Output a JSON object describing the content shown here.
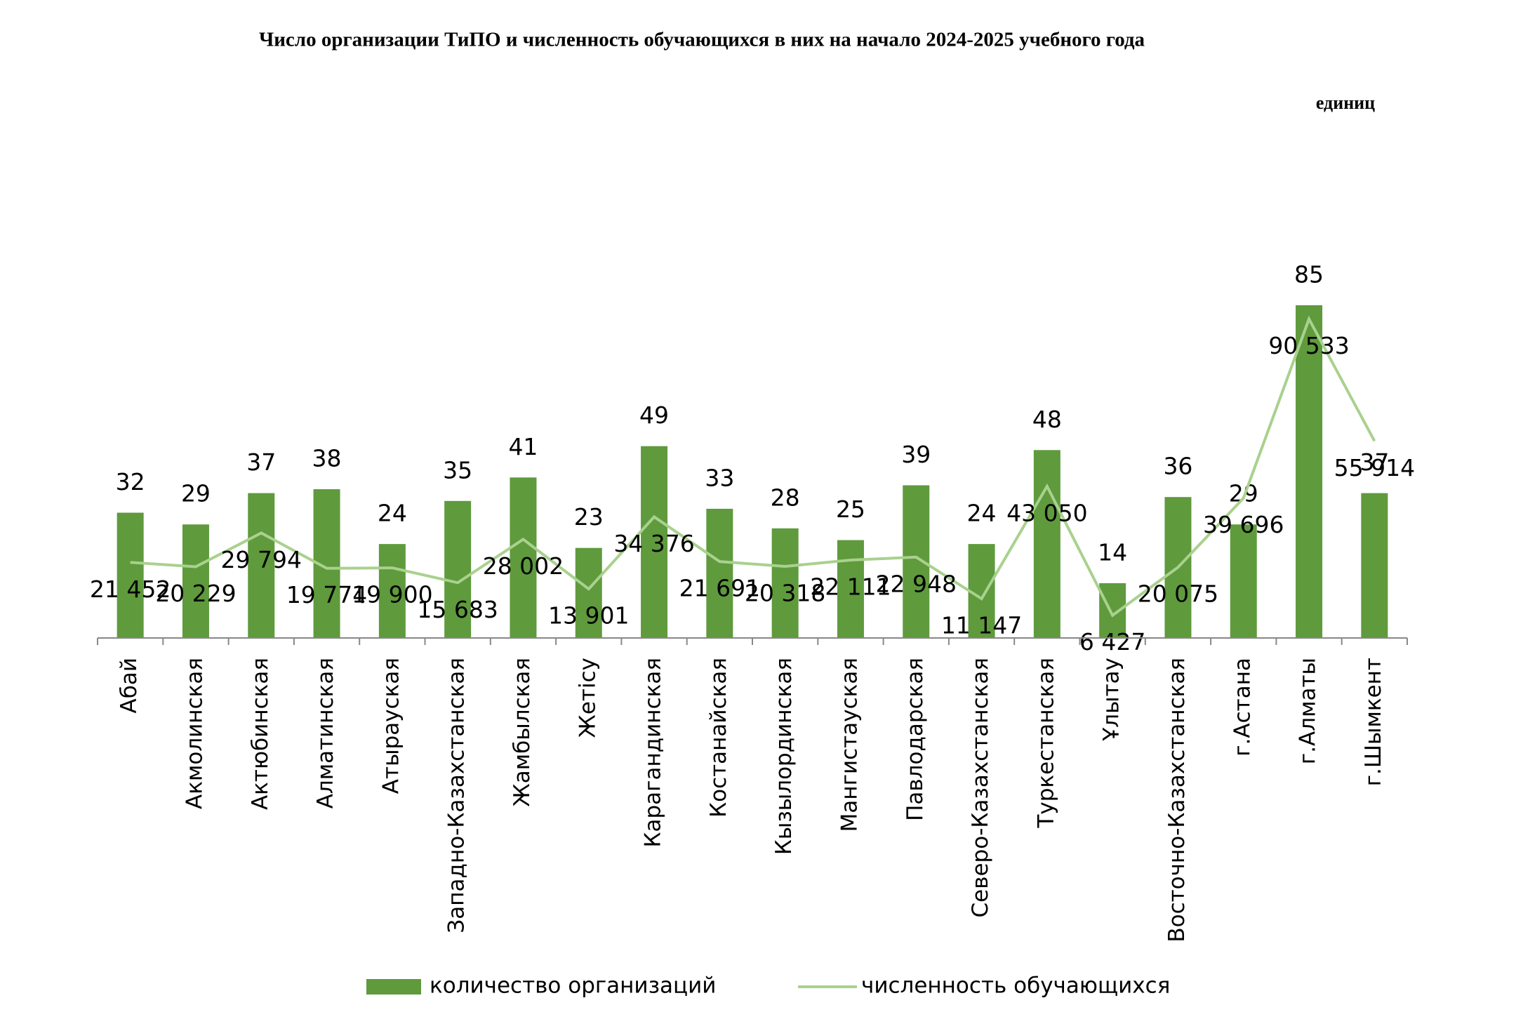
{
  "chart_data": {
    "type": "bar",
    "title": "Число организации ТиПО и численность обучающихся в них на начало 2024-2025 учебного года",
    "unit_note": "единиц",
    "categories": [
      "Абай",
      "Акмолинская",
      "Актюбинская",
      "Алматинская",
      "Атырауская",
      "Западно-Казахстанская",
      "Жамбылская",
      "Жетісу",
      "Карагандинская",
      "Костанайская",
      "Кызылординская",
      "Мангистауская",
      "Павлодарская",
      "Северо-Казахстанская",
      "Туркестанская",
      "Ұлытау",
      "Восточно-Казахстанская",
      "г.Астана",
      "г.Алматы",
      "г.Шымкент"
    ],
    "series": [
      {
        "name": "количество организаций",
        "type": "bar",
        "color": "#5f9a3d",
        "values": [
          32,
          29,
          37,
          38,
          24,
          35,
          41,
          23,
          49,
          33,
          28,
          25,
          39,
          24,
          48,
          14,
          36,
          29,
          85,
          37
        ]
      },
      {
        "name": "численность обучающихся",
        "type": "line",
        "axis": "y2",
        "color": "#a9d18e",
        "values": [
          21452,
          20229,
          29794,
          19774,
          19900,
          15683,
          28002,
          13901,
          34376,
          21691,
          20318,
          22111,
          22948,
          11147,
          43050,
          6427,
          20075,
          39696,
          90533,
          55914
        ],
        "value_labels": [
          "21 452",
          "20 229",
          "29 794",
          "19 774",
          "19 900",
          "15 683",
          "28 002",
          "13 901",
          "34 376",
          "21 691",
          "20 318",
          "22 111",
          "22 948",
          "11 147",
          "43 050",
          "6 427",
          "20 075",
          "39 696",
          "90 533",
          "55 914"
        ]
      }
    ],
    "ylim": [
      0,
      90
    ],
    "y2lim": [
      0,
      100000
    ],
    "legend": "bottom"
  }
}
